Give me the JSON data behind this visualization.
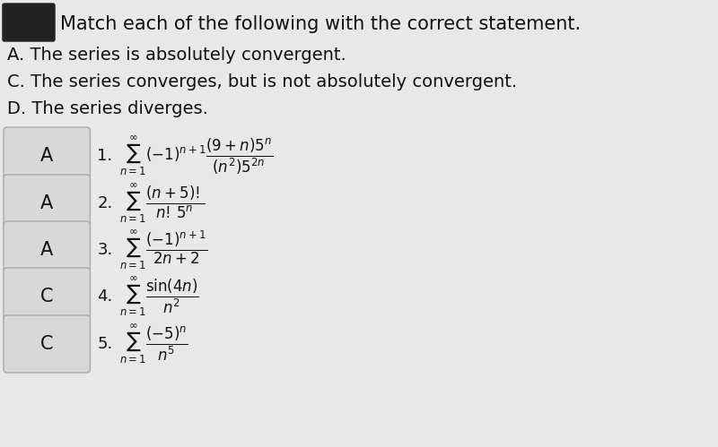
{
  "title_line": "Match each of the following with the correct statement.",
  "statements": [
    "A. The series is absolutely convergent.",
    "C. The series converges, but is not absolutely convergent.",
    "D. The series diverges."
  ],
  "rows": [
    {
      "answer": "A",
      "number": "1.",
      "formula_parts": {
        "type": "1",
        "description": "sum_(-1)^{n+1} (9+n)5^n / (n^2)5^{2n}"
      }
    },
    {
      "answer": "A",
      "number": "2.",
      "formula_parts": {
        "type": "2",
        "description": "sum (n+5)! / n!5^n"
      }
    },
    {
      "answer": "A",
      "number": "3.",
      "formula_parts": {
        "type": "3",
        "description": "sum (-1)^{n+1} / 2n+2"
      }
    },
    {
      "answer": "C",
      "number": "4.",
      "formula_parts": {
        "type": "4",
        "description": "sum sin(4n) / n^2"
      }
    },
    {
      "answer": "C",
      "number": "5.",
      "formula_parts": {
        "type": "5",
        "description": "sum (-5)^n / n^5"
      }
    }
  ],
  "bg_color": "#e8e8e8",
  "box_color": "#d0d0d0",
  "box_edge_color": "#aaaaaa",
  "text_color": "#111111",
  "title_fontsize": 15,
  "statement_fontsize": 14,
  "answer_fontsize": 15,
  "formula_fontsize": 13
}
